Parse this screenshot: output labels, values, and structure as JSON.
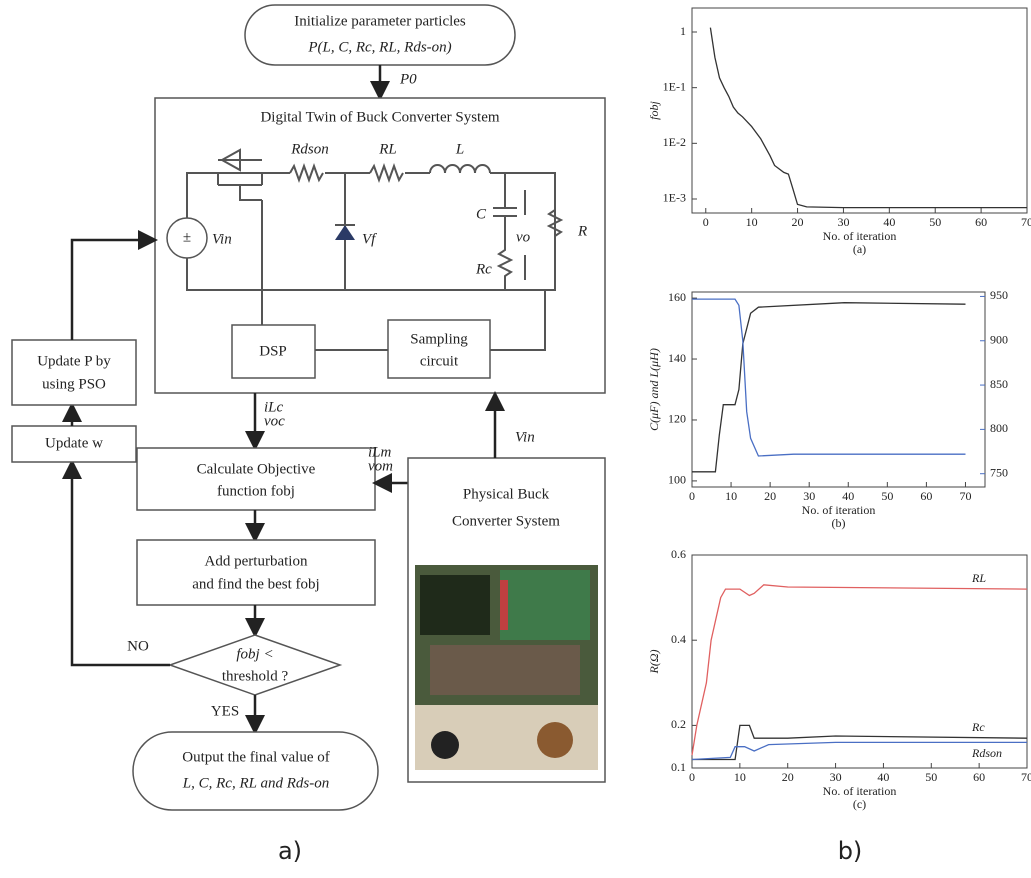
{
  "diagram": {
    "start": [
      "Initialize parameter particles",
      "P(L, C, Rc, RL, Rds-on)"
    ],
    "p0": "P0",
    "twin_title": "Digital Twin of Buck Converter System",
    "circuit": {
      "rdson": "Rdson",
      "rl": "RL",
      "l": "L",
      "vin": "Vin",
      "vf": "Vf",
      "c": "C",
      "vo": "vo",
      "r": "R",
      "rc": "Rc",
      "dsp": "DSP",
      "sampling": [
        "Sampling",
        "circuit"
      ]
    },
    "twin_outputs": [
      "iLc",
      "voc"
    ],
    "measured": [
      "iLm",
      "vom"
    ],
    "vin": "Vin",
    "calc": [
      "Calculate Objective",
      "function fobj"
    ],
    "perturb": [
      "Add perturbation",
      "and find the best fobj"
    ],
    "decision": [
      "fobj <",
      "threshold ?"
    ],
    "no": "NO",
    "yes": "YES",
    "output": [
      "Output the final value of",
      "L, C, Rc, RL and Rds-on"
    ],
    "update_p": [
      "Update P by",
      "using PSO"
    ],
    "update_w": "Update w",
    "physical": [
      "Physical Buck",
      "Converter System"
    ],
    "label_a": "a)",
    "label_b": "b)"
  },
  "chart_data": [
    {
      "type": "line",
      "caption": "(a)",
      "xlabel": "No. of iteration",
      "ylabel": "fobj",
      "log_y": true,
      "xlim": [
        -3,
        70
      ],
      "xticks": [
        0,
        10,
        20,
        30,
        40,
        50,
        60,
        70
      ],
      "ylim": [
        0.00056,
        2.7
      ],
      "yticks": [
        {
          "value": 1,
          "label": "1"
        },
        {
          "value": 0.1,
          "label": "1E-1"
        },
        {
          "value": 0.01,
          "label": "1E-2"
        },
        {
          "value": 0.001,
          "label": "1E-3"
        }
      ],
      "series": [
        {
          "name": "fobj",
          "color": "#333333",
          "x": [
            1,
            2,
            3,
            4,
            5,
            6,
            7,
            8,
            10,
            12,
            14,
            15,
            17,
            18,
            19,
            20,
            22,
            30,
            70
          ],
          "values": [
            1.2,
            0.35,
            0.15,
            0.1,
            0.07,
            0.045,
            0.035,
            0.03,
            0.02,
            0.012,
            0.006,
            0.004,
            0.003,
            0.0028,
            0.0015,
            0.0008,
            0.00072,
            0.0007,
            0.0007
          ]
        }
      ]
    },
    {
      "type": "line",
      "caption": "(b)",
      "xlabel": "No. of iteration",
      "ylabel": "C(μF) and L(μH)",
      "xlim": [
        0,
        75
      ],
      "xticks": [
        0,
        10,
        20,
        30,
        40,
        50,
        60,
        70
      ],
      "ylim": [
        98,
        162
      ],
      "yticks": [
        100,
        120,
        140,
        160
      ],
      "y2lim": [
        735,
        955
      ],
      "y2ticks": [
        750,
        800,
        850,
        900,
        950
      ],
      "series": [
        {
          "name": "C",
          "color": "#333333",
          "x": [
            0,
            6,
            7,
            8,
            11,
            12,
            13,
            15,
            17,
            39,
            70
          ],
          "values": [
            103,
            103,
            115,
            125,
            125,
            130,
            145,
            155,
            157,
            158.5,
            158
          ]
        },
        {
          "name": "L",
          "color": "#4a6fc4",
          "axis": "y2",
          "x": [
            0,
            11,
            12,
            13,
            14,
            15,
            17,
            26,
            70
          ],
          "values": [
            947,
            947,
            940,
            900,
            820,
            790,
            770,
            772,
            772
          ]
        }
      ]
    },
    {
      "type": "line",
      "caption": "(c)",
      "xlabel": "No. of iteration",
      "ylabel": "R(Ω)",
      "xlim": [
        0,
        70
      ],
      "xticks": [
        0,
        10,
        20,
        30,
        40,
        50,
        60,
        70
      ],
      "ylim": [
        0.1,
        0.6
      ],
      "yticks": [
        0.1,
        0.2,
        0.4,
        0.6
      ],
      "series": [
        {
          "name": "RL",
          "color": "#e06060",
          "x": [
            0,
            1,
            3,
            4,
            5,
            6,
            7,
            10,
            12,
            13,
            15,
            20,
            70
          ],
          "values": [
            0.13,
            0.2,
            0.3,
            0.4,
            0.45,
            0.5,
            0.52,
            0.52,
            0.505,
            0.51,
            0.53,
            0.525,
            0.52
          ]
        },
        {
          "name": "Rc",
          "color": "#333333",
          "x": [
            0,
            9,
            10,
            12,
            13,
            20,
            30,
            70
          ],
          "values": [
            0.12,
            0.12,
            0.2,
            0.2,
            0.17,
            0.17,
            0.175,
            0.17
          ]
        },
        {
          "name": "Rdson",
          "color": "#4a6fc4",
          "x": [
            0,
            8,
            9,
            11,
            13,
            16,
            30,
            70
          ],
          "values": [
            0.12,
            0.125,
            0.15,
            0.15,
            0.14,
            0.155,
            0.16,
            0.16
          ]
        }
      ]
    }
  ]
}
